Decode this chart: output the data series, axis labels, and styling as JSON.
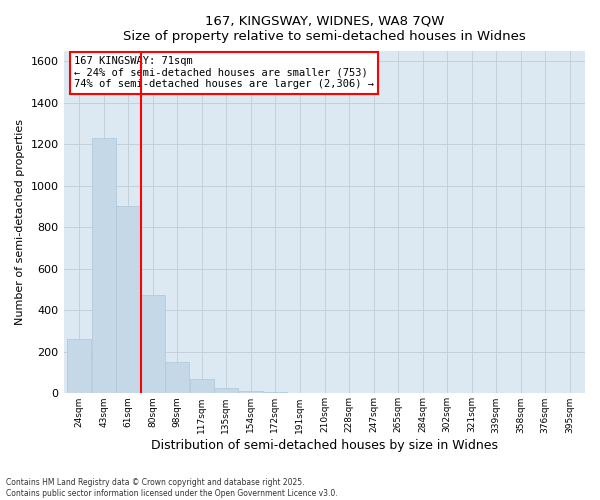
{
  "title_line1": "167, KINGSWAY, WIDNES, WA8 7QW",
  "title_line2": "Size of property relative to semi-detached houses in Widnes",
  "xlabel": "Distribution of semi-detached houses by size in Widnes",
  "ylabel": "Number of semi-detached properties",
  "property_size": 71,
  "annotation_line1": "167 KINGSWAY: 71sqm",
  "annotation_line2": "← 24% of semi-detached houses are smaller (753)",
  "annotation_line3": "74% of semi-detached houses are larger (2,306) →",
  "bar_color": "#c5d8e8",
  "bar_edge_color": "#aec6d8",
  "vline_color": "red",
  "annotation_box_edge": "red",
  "annotation_box_face": "white",
  "axes_bg_color": "#dce9f3",
  "grid_color": "#c0cdd8",
  "background_color": "white",
  "footer_line1": "Contains HM Land Registry data © Crown copyright and database right 2025.",
  "footer_line2": "Contains public sector information licensed under the Open Government Licence v3.0.",
  "bin_labels": [
    "24sqm",
    "43sqm",
    "61sqm",
    "80sqm",
    "98sqm",
    "117sqm",
    "135sqm",
    "154sqm",
    "172sqm",
    "191sqm",
    "210sqm",
    "228sqm",
    "247sqm",
    "265sqm",
    "284sqm",
    "302sqm",
    "321sqm",
    "339sqm",
    "358sqm",
    "376sqm",
    "395sqm"
  ],
  "bin_centers": [
    24,
    43,
    61,
    80,
    98,
    117,
    135,
    154,
    172,
    191,
    210,
    228,
    247,
    265,
    284,
    302,
    321,
    339,
    358,
    376,
    395
  ],
  "counts": [
    262,
    1233,
    903,
    472,
    152,
    68,
    28,
    12,
    5,
    3,
    2,
    1,
    0,
    1,
    0,
    0,
    0,
    0,
    0,
    0,
    0
  ],
  "ylim": [
    0,
    1650
  ],
  "yticks": [
    0,
    200,
    400,
    600,
    800,
    1000,
    1200,
    1400,
    1600
  ]
}
